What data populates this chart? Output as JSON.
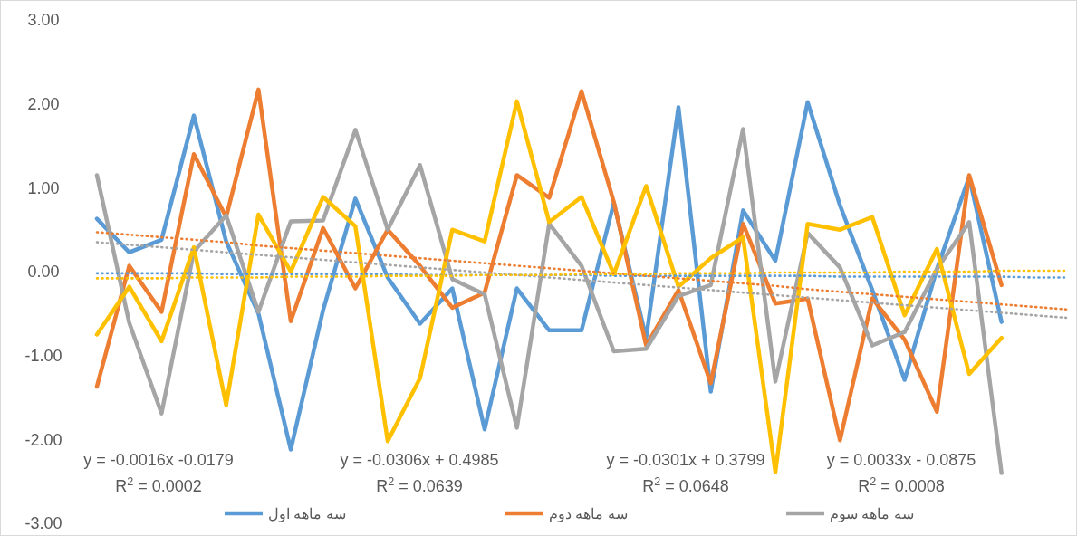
{
  "chart_data": {
    "type": "line",
    "ylim": [
      -3,
      3
    ],
    "yticks": [
      {
        "value": 3,
        "label": "3.00"
      },
      {
        "value": 2,
        "label": "2.00"
      },
      {
        "value": 1,
        "label": "1.00"
      },
      {
        "value": 0,
        "label": "0.00"
      },
      {
        "value": -1,
        "label": "-1.00"
      },
      {
        "value": -2,
        "label": "-2.00"
      },
      {
        "value": -3,
        "label": "-3.00"
      }
    ],
    "tick_labels": "y",
    "legend": "bottom",
    "categories": [
      null,
      null,
      null,
      null,
      null,
      null,
      null,
      null,
      null,
      null,
      null,
      null,
      null,
      null,
      null,
      null,
      null,
      null,
      null,
      null,
      null,
      null,
      null,
      null,
      null,
      null,
      null,
      null,
      null,
      null,
      null
    ],
    "series": [
      {
        "name": "سه ماهه اول",
        "color": "#5b9bd5",
        "values": [
          0.63,
          0.23,
          0.38,
          1.86,
          0.36,
          -0.5,
          -2.12,
          -0.46,
          0.87,
          -0.07,
          -0.62,
          -0.2,
          -1.88,
          -0.2,
          -0.7,
          -0.7,
          0.82,
          -0.79,
          1.96,
          -1.43,
          0.73,
          0.13,
          2.02,
          0.79,
          -0.22,
          -1.29,
          0.03,
          1.13,
          -0.6,
          null,
          null
        ]
      },
      {
        "name": "سه ماهه دوم",
        "color": "#ed7d31",
        "values": [
          -1.37,
          0.07,
          -0.48,
          1.4,
          0.65,
          2.17,
          -0.59,
          0.52,
          -0.2,
          0.5,
          0.07,
          -0.43,
          -0.25,
          1.15,
          0.88,
          2.15,
          0.83,
          -0.88,
          -0.22,
          -1.33,
          0.57,
          -0.38,
          -0.32,
          -2.01,
          -0.32,
          -0.81,
          -1.67,
          1.15,
          -0.16,
          null,
          null
        ]
      },
      {
        "name": "سه ماهه سوم",
        "color": "#a5a5a5",
        "values": [
          1.15,
          -0.61,
          -1.69,
          0.24,
          0.67,
          -0.48,
          0.6,
          0.61,
          1.69,
          0.5,
          1.27,
          -0.09,
          -0.27,
          -1.86,
          0.57,
          0.07,
          -0.95,
          -0.92,
          -0.29,
          -0.16,
          1.7,
          -1.31,
          0.46,
          0.05,
          -0.88,
          -0.72,
          0.03,
          0.59,
          -2.4,
          null,
          null
        ]
      },
      {
        "color": "#ffc000",
        "values": [
          -0.75,
          -0.18,
          -0.83,
          0.29,
          -1.59,
          0.68,
          0.0,
          0.89,
          0.54,
          -2.02,
          -1.27,
          0.5,
          0.36,
          2.03,
          0.59,
          0.89,
          -0.03,
          1.02,
          -0.18,
          0.16,
          0.41,
          -2.39,
          0.57,
          0.5,
          0.65,
          -0.52,
          0.27,
          -1.22,
          -0.79,
          null,
          null
        ]
      },
      {
        "type": "line",
        "color": "#5b9bd5",
        "line_style": "dotted",
        "values": [
          -0.02,
          -0.02,
          -0.02,
          -0.02,
          -0.03,
          -0.03,
          -0.03,
          -0.03,
          -0.03,
          -0.03,
          -0.04,
          -0.04,
          -0.04,
          -0.04,
          -0.04,
          -0.04,
          -0.05,
          -0.05,
          -0.05,
          -0.05,
          -0.05,
          -0.05,
          -0.05,
          -0.06,
          -0.06,
          -0.06,
          -0.06,
          -0.06,
          -0.06,
          -0.07,
          -0.07
        ]
      },
      {
        "type": "line",
        "color": "#ed7d31",
        "line_style": "dotted",
        "values": [
          0.47,
          0.44,
          0.41,
          0.38,
          0.35,
          0.31,
          0.28,
          0.25,
          0.22,
          0.19,
          0.16,
          0.13,
          0.1,
          0.07,
          0.04,
          0.01,
          -0.02,
          -0.05,
          -0.08,
          -0.11,
          -0.14,
          -0.17,
          -0.21,
          -0.24,
          -0.27,
          -0.3,
          -0.33,
          -0.36,
          -0.39,
          -0.42,
          -0.45
        ]
      },
      {
        "type": "line",
        "color": "#a5a5a5",
        "line_style": "dotted",
        "values": [
          0.35,
          0.32,
          0.29,
          0.26,
          0.23,
          0.2,
          0.17,
          0.14,
          0.11,
          0.08,
          0.05,
          0.02,
          -0.01,
          -0.04,
          -0.07,
          -0.1,
          -0.13,
          -0.16,
          -0.19,
          -0.22,
          -0.25,
          -0.28,
          -0.31,
          -0.34,
          -0.37,
          -0.4,
          -0.43,
          -0.46,
          -0.49,
          -0.52,
          -0.55
        ]
      },
      {
        "type": "line",
        "color": "#ffc000",
        "line_style": "dotted",
        "values": [
          -0.08,
          -0.08,
          -0.08,
          -0.07,
          -0.07,
          -0.07,
          -0.06,
          -0.06,
          -0.06,
          -0.05,
          -0.05,
          -0.05,
          -0.04,
          -0.04,
          -0.04,
          -0.03,
          -0.03,
          -0.03,
          -0.02,
          -0.02,
          -0.02,
          -0.01,
          -0.01,
          -0.01,
          -0.01,
          0,
          0,
          0,
          0.01,
          0.01,
          0.01
        ]
      }
    ],
    "annotations": [
      "y = -0.0016x -0.0179",
      "R$^{2}$ = 0.0002",
      "y =  -0.0306x + 0.4985",
      "R$^{2}$ = 0.0639",
      "y = -0.0301x + 0.3799",
      "R$^{2}$ = 0.0648",
      "y = 0.0033x - 0.0875",
      "R$^{2}$ = 0.0008"
    ]
  }
}
